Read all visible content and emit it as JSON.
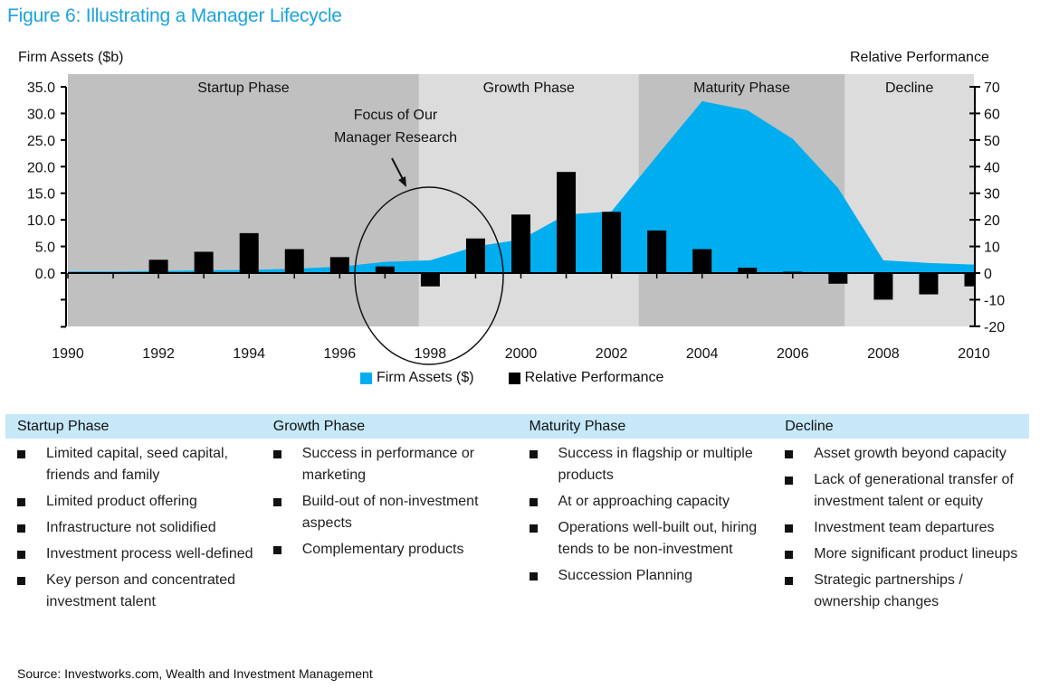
{
  "figure_title": "Figure 6: Illustrating a Manager Lifecycle",
  "left_axis_title": "Firm Assets ($b)",
  "right_axis_title": "Relative Performance",
  "annotation": {
    "line1": "Focus of Our",
    "line2": "Manager Research"
  },
  "colors": {
    "assets": "#00aeef",
    "performance": "#000000",
    "phase_dark": "#c0c0c0",
    "phase_light": "#dcdcdc",
    "title": "#1aa3dd",
    "table_header": "#c6e8f8"
  },
  "chart_data": {
    "type": "bar+area",
    "title": "Figure 6: Illustrating a Manager Lifecycle",
    "x": [
      1990,
      1991,
      1992,
      1993,
      1994,
      1995,
      1996,
      1997,
      1998,
      1999,
      2000,
      2001,
      2002,
      2003,
      2004,
      2005,
      2006,
      2007,
      2008,
      2009,
      2010
    ],
    "x_tick_labels": [
      "1990",
      "1992",
      "1994",
      "1996",
      "1998",
      "2000",
      "2002",
      "2004",
      "2006",
      "2008",
      "2010"
    ],
    "series": [
      {
        "name": "Firm Assets ($)",
        "type": "area",
        "axis": "left",
        "values": [
          0.3,
          0.3,
          0.4,
          0.5,
          0.6,
          0.8,
          1.2,
          2.1,
          2.4,
          5.0,
          6.3,
          11.0,
          11.6,
          22.0,
          32.3,
          30.6,
          25.2,
          16.0,
          2.4,
          1.9,
          1.6
        ]
      },
      {
        "name": "Relative Performance",
        "type": "bar",
        "axis": "right",
        "values": [
          null,
          null,
          5,
          8,
          15,
          9,
          6,
          2.5,
          -5,
          13,
          22,
          38,
          23,
          16,
          9,
          2,
          0.5,
          -4,
          -10,
          -8,
          -5
        ]
      }
    ],
    "left_axis": {
      "label": "Firm Assets ($b)",
      "ylim": [
        -10.5,
        35
      ],
      "ticks": [
        35,
        30,
        25,
        20,
        15,
        10,
        5,
        0
      ],
      "tick_labels": [
        "35.0",
        "30.0",
        "25.0",
        "20.0",
        "15.0",
        "10.0",
        "5.0",
        "0.0"
      ]
    },
    "right_axis": {
      "label": "Relative Performance",
      "ylim": [
        -20,
        70
      ],
      "ticks": [
        70,
        60,
        50,
        40,
        30,
        20,
        10,
        0,
        -10,
        -20
      ],
      "tick_labels": [
        "70",
        "60",
        "50",
        "40",
        "30",
        "20",
        "10",
        "0",
        "-10",
        "-20"
      ]
    },
    "phases": [
      {
        "label": "Startup Phase",
        "start": 1990,
        "end": 1997.75,
        "shade": "dark"
      },
      {
        "label": "Growth Phase",
        "start": 1997.75,
        "end": 2002.6,
        "shade": "light"
      },
      {
        "label": "Maturity Phase",
        "start": 2002.6,
        "end": 2007.15,
        "shade": "dark"
      },
      {
        "label": "Decline",
        "start": 2007.15,
        "end": 2010,
        "shade": "light"
      }
    ],
    "annotation": {
      "text": "Focus of Our Manager Research",
      "target_years": [
        1996.4,
        1999.6
      ]
    },
    "legend": [
      "Firm Assets ($)",
      "Relative Performance"
    ],
    "legend_position": "bottom",
    "grid": false
  },
  "table": {
    "columns": [
      {
        "header": "Startup Phase",
        "bullets": [
          "Limited capital, seed capital, friends and family",
          "Limited product offering",
          "Infrastructure not solidified",
          "Investment process well-defined",
          "Key person and concentrated investment talent"
        ]
      },
      {
        "header": "Growth Phase",
        "bullets": [
          "Success in performance or marketing",
          "Build-out of non-investment aspects",
          "Complementary products"
        ]
      },
      {
        "header": "Maturity Phase",
        "bullets": [
          "Success in flagship or multiple products",
          "At or approaching capacity",
          "Operations well-built out, hiring tends to be non-investment",
          "Succession Planning"
        ]
      },
      {
        "header": "Decline",
        "bullets": [
          "Asset growth beyond capacity",
          "Lack of generational transfer of investment talent or equity",
          "Investment team departures",
          "More significant product lineups",
          "Strategic partnerships / ownership changes"
        ]
      }
    ]
  },
  "source": "Source: Investworks.com, Wealth and Investment Management"
}
